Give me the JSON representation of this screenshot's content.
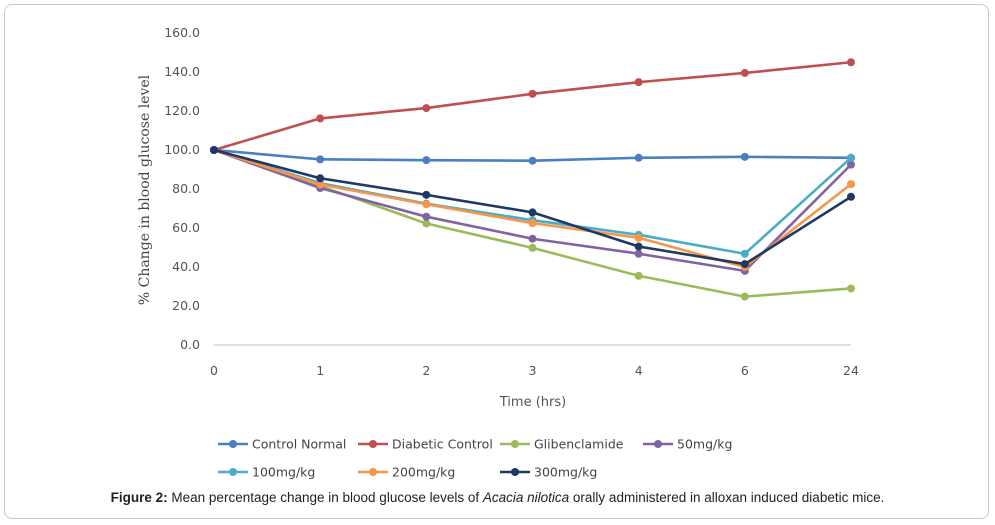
{
  "chart_data": {
    "type": "line",
    "xlabel": "Time (hrs)",
    "ylabel": "% Change in blood glucose level",
    "categories": [
      "0",
      "1",
      "2",
      "3",
      "4",
      "6",
      "24"
    ],
    "ylim": [
      0,
      160
    ],
    "yticks": [
      "0.0",
      "20.0",
      "40.0",
      "60.0",
      "80.0",
      "100.0",
      "120.0",
      "140.0",
      "160.0"
    ],
    "grid": false,
    "legend_position": "bottom",
    "series": [
      {
        "name": "Control Normal",
        "color": "#4a7fc1",
        "values": [
          100,
          95.2,
          94.8,
          94.5,
          96.0,
          96.5,
          96.0
        ]
      },
      {
        "name": "Diabetic Control",
        "color": "#c0504d",
        "values": [
          100,
          116.2,
          121.5,
          128.8,
          134.8,
          139.5,
          145.0
        ]
      },
      {
        "name": "Glibenclamide",
        "color": "#9bbb59",
        "values": [
          100,
          81.5,
          62.3,
          49.8,
          35.5,
          24.8,
          29.0
        ]
      },
      {
        "name": "50mg/kg",
        "color": "#8064a2",
        "values": [
          100,
          80.5,
          65.8,
          54.5,
          46.8,
          38.0,
          92.5
        ]
      },
      {
        "name": "100mg/kg",
        "color": "#4bacc6",
        "values": [
          100,
          83.0,
          72.5,
          64.0,
          56.5,
          46.8,
          96.0
        ]
      },
      {
        "name": "200mg/kg",
        "color": "#f79646",
        "values": [
          100,
          82.3,
          72.2,
          62.5,
          55.0,
          40.0,
          82.5
        ]
      },
      {
        "name": "300mg/kg",
        "color": "#1f3864",
        "values": [
          100,
          85.5,
          77.0,
          68.0,
          50.5,
          41.5,
          76.0
        ]
      }
    ]
  },
  "caption": {
    "label": "Figure 2:",
    "text_before": " Mean percentage change in blood glucose levels of ",
    "species": "Acacia nilotica",
    "text_after": " orally administered in alloxan induced diabetic mice."
  }
}
